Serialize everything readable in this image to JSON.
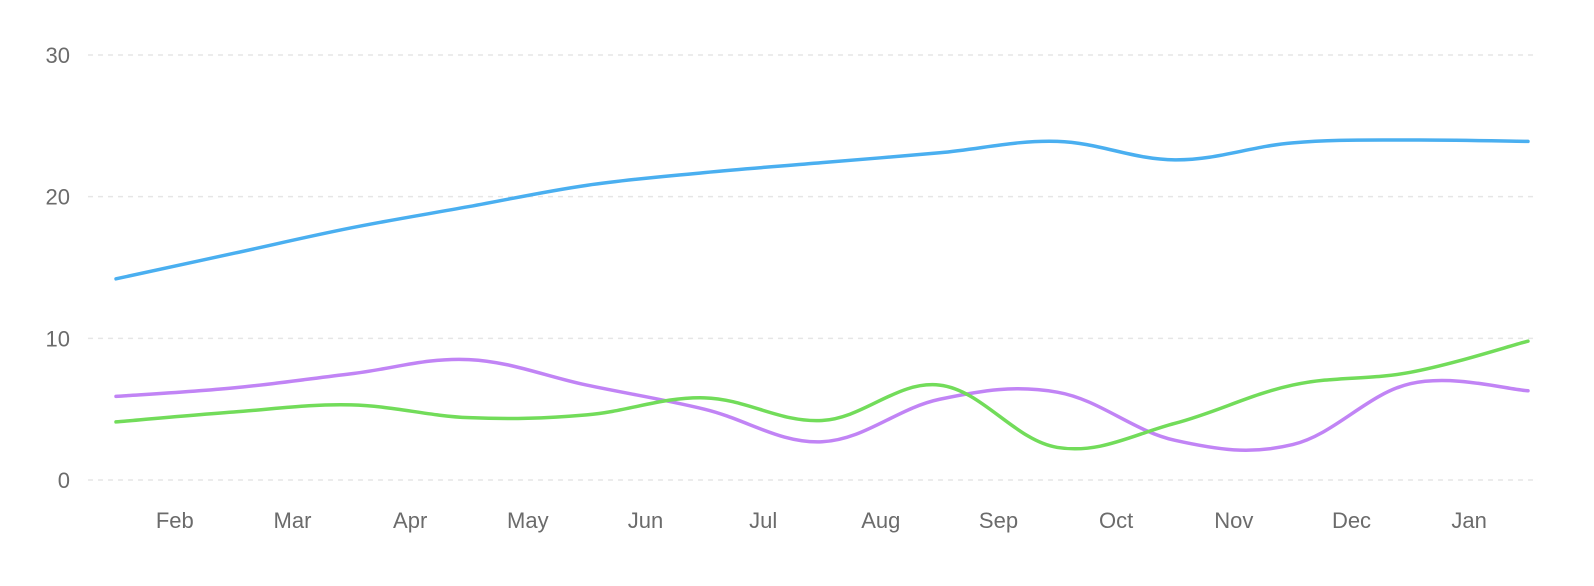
{
  "chart_data": {
    "type": "line",
    "title": "",
    "xlabel": "",
    "ylabel": "",
    "categories": [
      "Feb",
      "Mar",
      "Apr",
      "May",
      "Jun",
      "Jul",
      "Aug",
      "Sep",
      "Oct",
      "Nov",
      "Dec",
      "Jan"
    ],
    "x": [
      0,
      1,
      2,
      3,
      4,
      5,
      6,
      7,
      8,
      9,
      10,
      11,
      12
    ],
    "ylim": [
      0,
      30
    ],
    "yticks": [
      0,
      10,
      20,
      30
    ],
    "grid": true,
    "legend": "none",
    "series": [
      {
        "color": "#4aaff0",
        "values": [
          14.2,
          16.0,
          17.8,
          19.3,
          20.8,
          21.7,
          22.4,
          23.1,
          23.9,
          22.6,
          23.8,
          24.0,
          23.9
        ]
      },
      {
        "color": "#c184f5",
        "values": [
          5.9,
          6.5,
          7.5,
          8.5,
          6.7,
          5.0,
          2.7,
          5.7,
          6.2,
          2.8,
          2.5,
          6.8,
          6.3
        ]
      },
      {
        "color": "#72dc5a",
        "values": [
          4.1,
          4.8,
          5.3,
          4.4,
          4.6,
          5.8,
          4.2,
          6.7,
          2.3,
          4.0,
          6.7,
          7.6,
          9.8
        ]
      }
    ]
  }
}
